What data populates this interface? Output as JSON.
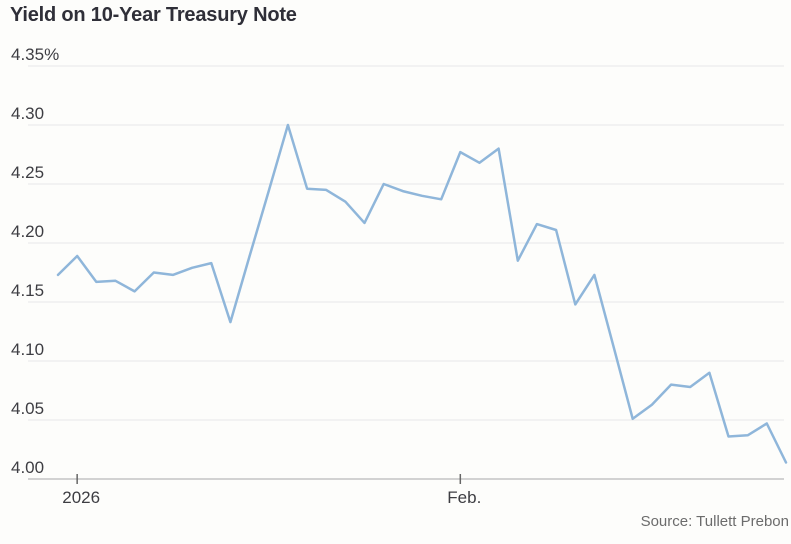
{
  "header": {
    "title": "Yield on 10-Year Treasury Note"
  },
  "footer": {
    "source": "Source: Tullett Prebon"
  },
  "colors": {
    "background": "#fdfdfb",
    "line": "#8fb6da",
    "gridline": "#e8e8e8",
    "axis_line": "#c4c4c4",
    "tick": "#666666",
    "axis_label": "#3d3d42",
    "title_text": "#2f2f38",
    "source_text": "#6c6c6c"
  },
  "chart_data": {
    "type": "line",
    "title": "Yield on 10-Year Treasury Note",
    "series_name": "10-Year Treasury Note yield",
    "unit": "percent",
    "ylim": [
      4.0,
      4.35
    ],
    "ytick_step": 0.05,
    "ytick_labels": [
      "4.35%",
      "4.30",
      "4.25",
      "4.20",
      "4.15",
      "4.10",
      "4.05",
      "4.00"
    ],
    "xticks": [
      {
        "label": "2026",
        "index": 1
      },
      {
        "label": "Feb.",
        "index": 21
      }
    ],
    "grid": "horizontal",
    "legend": "none",
    "values": [
      4.173,
      4.189,
      4.167,
      4.168,
      4.159,
      4.175,
      4.173,
      4.179,
      4.183,
      4.133,
      4.189,
      4.244,
      4.3,
      4.246,
      4.245,
      4.235,
      4.217,
      4.25,
      4.244,
      4.24,
      4.237,
      4.277,
      4.268,
      4.28,
      4.185,
      4.216,
      4.211,
      4.148,
      4.173,
      4.112,
      4.051,
      4.063,
      4.08,
      4.078,
      4.09,
      4.036,
      4.037,
      4.047,
      4.014
    ],
    "source": "Source: Tullett Prebon"
  }
}
